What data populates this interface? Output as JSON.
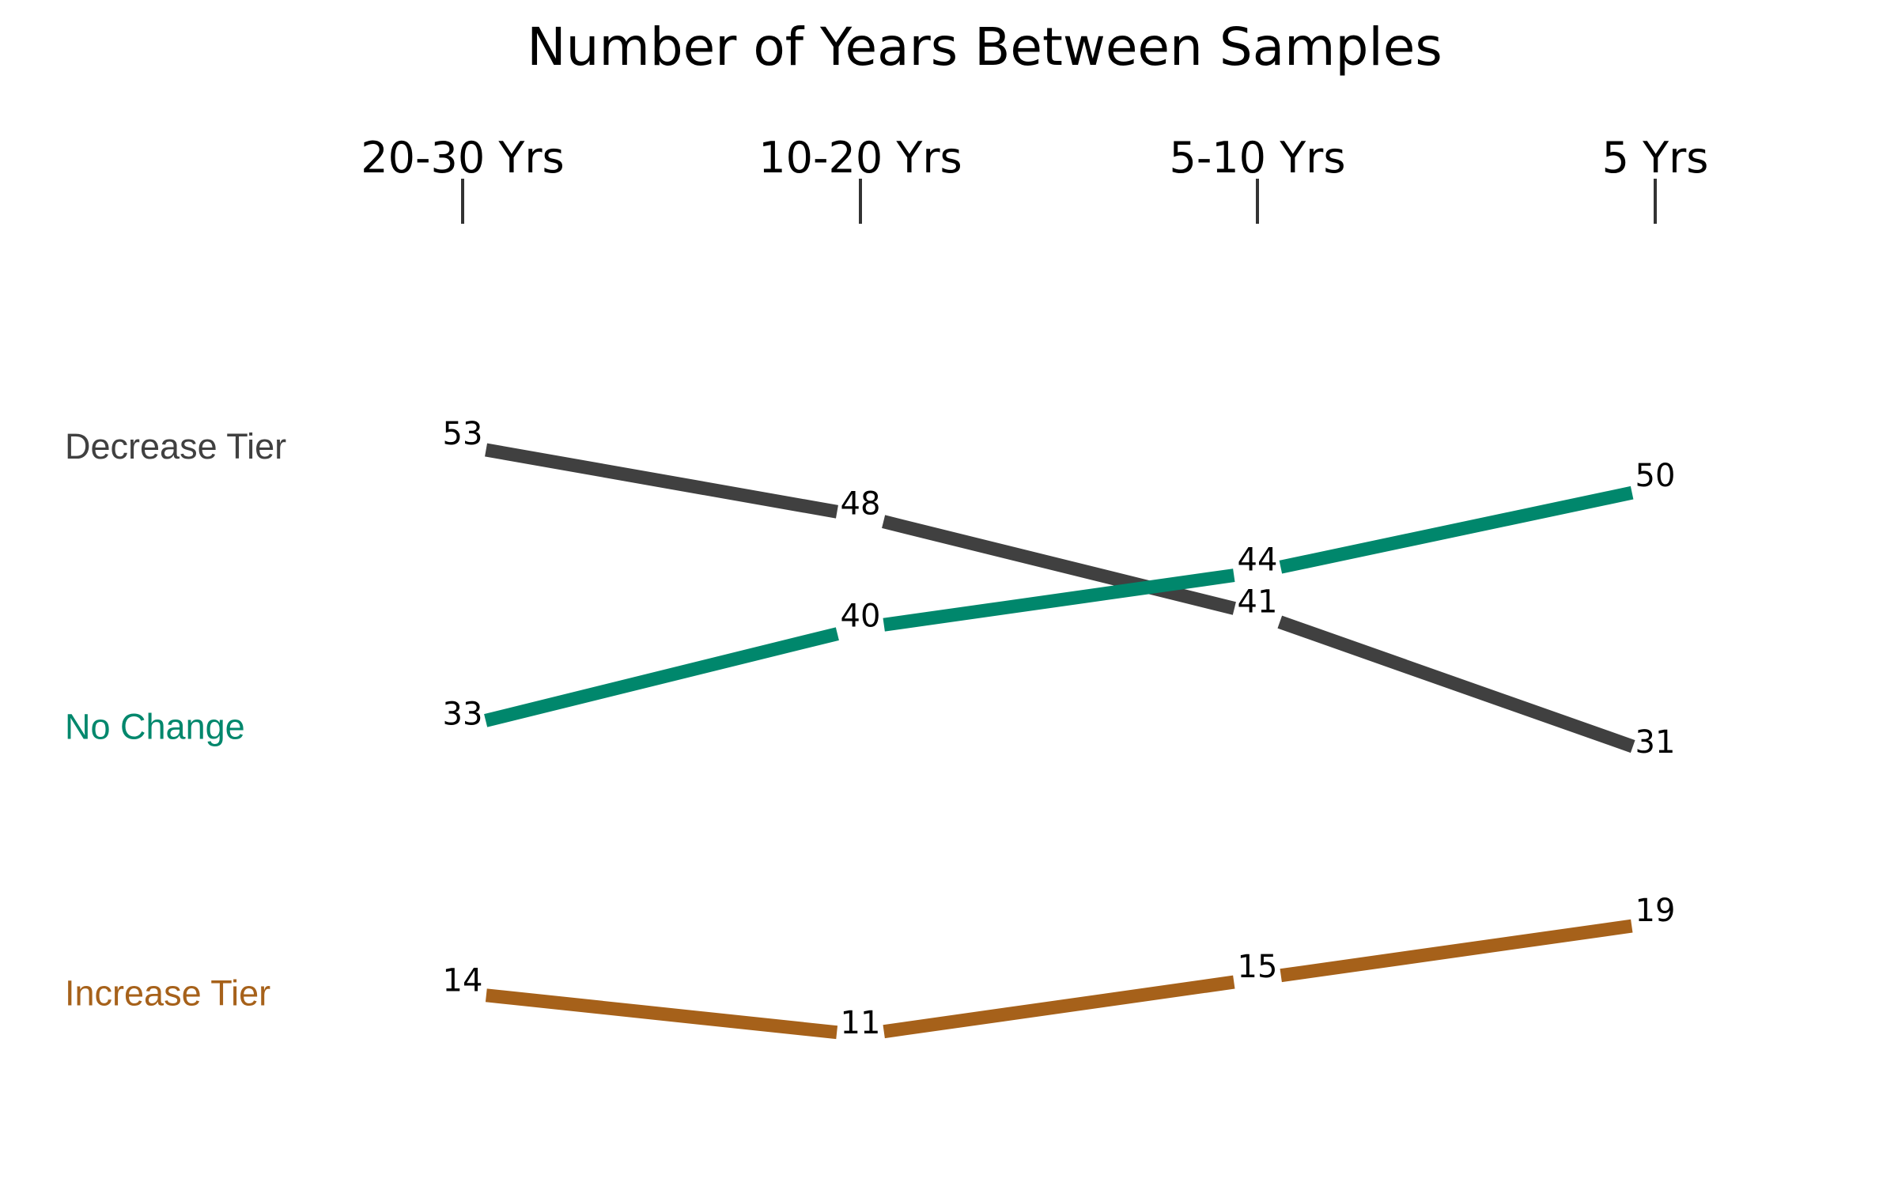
{
  "chart_data": {
    "type": "line",
    "title": "Number of Years Between Samples",
    "categories": [
      "20-30 Yrs",
      "10-20 Yrs",
      "5-10 Yrs",
      "5 Yrs"
    ],
    "series": [
      {
        "name": "Decrease Tier",
        "values": [
          53,
          48,
          41,
          31
        ],
        "color": "#404040"
      },
      {
        "name": "No Change",
        "values": [
          33,
          40,
          44,
          50
        ],
        "color": "#00876c"
      },
      {
        "name": "Increase Tier",
        "values": [
          14,
          11,
          15,
          19
        ],
        "color": "#a6611a"
      }
    ],
    "ylim": [
      0,
      100
    ],
    "grid": false,
    "legend": "left"
  }
}
